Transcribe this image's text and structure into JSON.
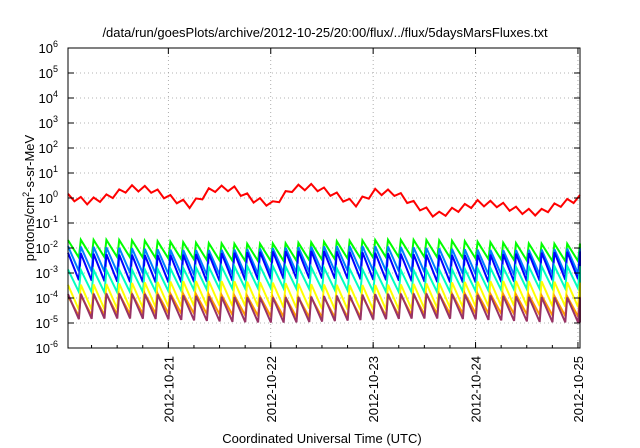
{
  "chart_data": {
    "type": "line",
    "title": "/data/run/goesPlots/archive/2012-10-25/20:00/flux/../flux/5daysMarsFluxes.txt",
    "xlabel": "Coordinated Universal Time (UTC)",
    "ylabel": {
      "pre": "protons/cm",
      "sup": "2",
      "post": "-s-sr-MeV"
    },
    "log_y": true,
    "grid": true,
    "ylim_exp": [
      -6,
      6
    ],
    "y_ticks": [
      {
        "base": "10",
        "exp": "6"
      },
      {
        "base": "10",
        "exp": "5"
      },
      {
        "base": "10",
        "exp": "4"
      },
      {
        "base": "10",
        "exp": "3"
      },
      {
        "base": "10",
        "exp": "2"
      },
      {
        "base": "10",
        "exp": "1"
      },
      {
        "base": "10",
        "exp": "0"
      },
      {
        "base": "10",
        "exp": "-1"
      },
      {
        "base": "10",
        "exp": "-2"
      },
      {
        "base": "10",
        "exp": "-3"
      },
      {
        "base": "10",
        "exp": "-4"
      },
      {
        "base": "10",
        "exp": "-5"
      },
      {
        "base": "10",
        "exp": "-6"
      }
    ],
    "xlim_days": [
      0,
      5
    ],
    "x_ticks": [
      {
        "label": "2012-10-21",
        "day": 0.98
      },
      {
        "label": "2012-10-22",
        "day": 1.98
      },
      {
        "label": "2012-10-23",
        "day": 2.98
      },
      {
        "label": "2012-10-24",
        "day": 3.98
      },
      {
        "label": "2012-10-25",
        "day": 4.98
      }
    ],
    "sawtooth_period_days": 0.125,
    "series": [
      {
        "color": "#ff0000",
        "style": "smooth",
        "x": [
          0,
          0.2,
          0.4,
          0.6,
          0.8,
          1.0,
          1.2,
          1.4,
          1.6,
          1.8,
          2.0,
          2.2,
          2.4,
          2.6,
          2.8,
          3.0,
          3.2,
          3.4,
          3.6,
          3.8,
          4.0,
          4.2,
          4.4,
          4.6,
          4.8,
          5.0
        ],
        "y_log": [
          0.05,
          -0.15,
          0.05,
          0.4,
          0.35,
          0.0,
          -0.3,
          0.35,
          0.4,
          -0.05,
          -0.25,
          0.4,
          0.45,
          0.15,
          -0.25,
          0.25,
          0.2,
          -0.3,
          -0.7,
          -0.45,
          -0.2,
          -0.25,
          -0.5,
          -0.6,
          -0.25,
          0.0
        ],
        "jitter": 0.12
      },
      {
        "color": "#00ff00",
        "style": "sawtooth",
        "peak_log": -1.75,
        "drop": 0.7
      },
      {
        "color": "#0080ff",
        "style": "sawtooth",
        "peak_log": -2.0,
        "drop": 1.0
      },
      {
        "color": "#0000ff",
        "style": "sawtooth",
        "peak_log": -2.2,
        "drop": 1.1
      },
      {
        "color": "#00ffc0",
        "style": "sawtooth",
        "peak_log": -2.8,
        "drop": 0.9
      },
      {
        "color": "#ffff00",
        "style": "sawtooth",
        "peak_log": -3.4,
        "drop": 1.0
      },
      {
        "color": "#ff9900",
        "style": "sawtooth",
        "peak_log": -3.9,
        "drop": 0.8
      },
      {
        "color": "#993366",
        "style": "sawtooth",
        "peak_log": -3.9,
        "drop": 1.0
      }
    ]
  }
}
